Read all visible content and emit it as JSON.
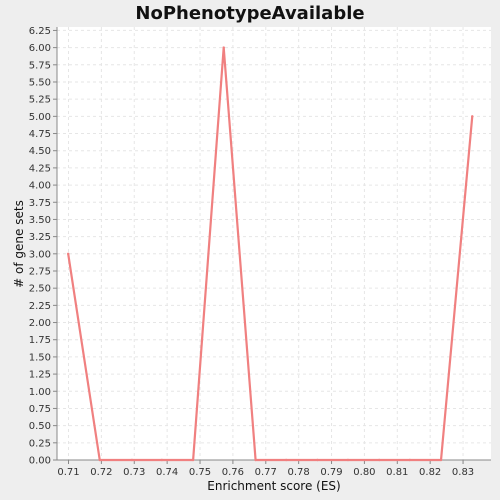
{
  "chart_data": {
    "type": "line",
    "title": "NoPhenotypeAvailable",
    "xlabel": "Enrichment score (ES)",
    "ylabel": "# of gene sets",
    "xlim": [
      0.7065,
      0.8385
    ],
    "ylim": [
      0,
      6.3
    ],
    "x_ticks": [
      "0.71",
      "0.72",
      "0.73",
      "0.74",
      "0.75",
      "0.76",
      "0.77",
      "0.78",
      "0.79",
      "0.80",
      "0.81",
      "0.82",
      "0.83"
    ],
    "y_ticks": [
      "0.00",
      "0.25",
      "0.50",
      "0.75",
      "1.00",
      "1.25",
      "1.50",
      "1.75",
      "2.00",
      "2.25",
      "2.50",
      "2.75",
      "3.00",
      "3.25",
      "3.50",
      "3.75",
      "4.00",
      "4.25",
      "4.50",
      "4.75",
      "5.00",
      "5.25",
      "5.50",
      "5.75",
      "6.00",
      "6.25"
    ],
    "grid": true,
    "series": [
      {
        "color": "#f08080",
        "x": [
          0.7099,
          0.7195,
          0.7293,
          0.7384,
          0.7479,
          0.7572,
          0.7669,
          0.7762,
          0.7857,
          0.795,
          0.8045,
          0.8138,
          0.8233,
          0.8328
        ],
        "y": [
          3,
          0,
          0,
          0,
          0,
          6,
          0,
          0,
          0,
          0,
          0,
          0,
          0,
          5
        ]
      }
    ]
  }
}
